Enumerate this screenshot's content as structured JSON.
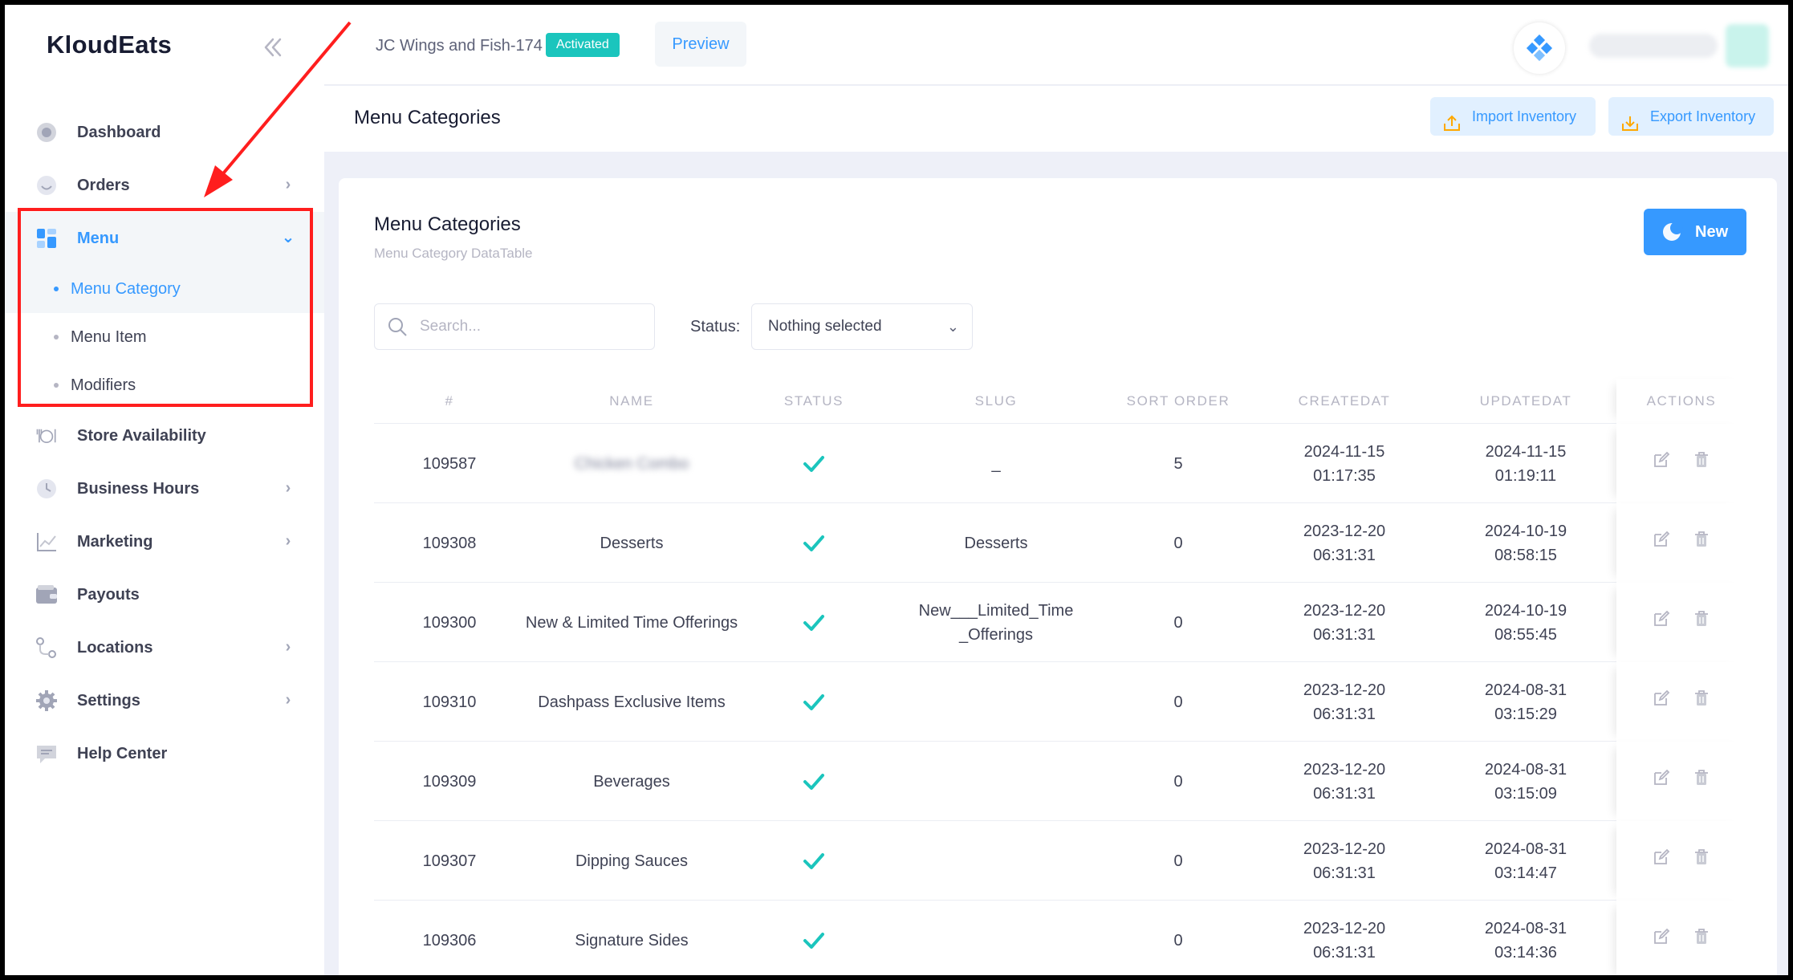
{
  "brand": "KloudEats",
  "sidebar": {
    "items": [
      {
        "label": "Dashboard"
      },
      {
        "label": "Orders"
      },
      {
        "label": "Menu"
      },
      {
        "label": "Store Availability"
      },
      {
        "label": "Business Hours"
      },
      {
        "label": "Marketing"
      },
      {
        "label": "Payouts"
      },
      {
        "label": "Locations"
      },
      {
        "label": "Settings"
      },
      {
        "label": "Help Center"
      }
    ],
    "menu_sub": [
      {
        "label": "Menu Category"
      },
      {
        "label": "Menu Item"
      },
      {
        "label": "Modifiers"
      }
    ]
  },
  "topbar": {
    "store_name": "JC Wings and Fish-174",
    "badge": "Activated",
    "preview": "Preview"
  },
  "subheader": {
    "title": "Menu Categories",
    "import": "Import Inventory",
    "export": "Export Inventory"
  },
  "card": {
    "title": "Menu Categories",
    "subtitle": "Menu Category DataTable",
    "new_button": "New",
    "search_placeholder": "Search...",
    "status_label": "Status:",
    "status_value": "Nothing selected"
  },
  "table": {
    "headers": [
      "#",
      "NAME",
      "STATUS",
      "SLUG",
      "SORT ORDER",
      "CREATEDAT",
      "UPDATEDAT",
      "ACTIONS"
    ],
    "rows": [
      {
        "id": "109587",
        "name": "Chicken Combo",
        "slug": "_",
        "sort": "5",
        "created_date": "2024-11-15",
        "created_time": "01:17:35",
        "updated_date": "2024-11-15",
        "updated_time": "01:19:11"
      },
      {
        "id": "109308",
        "name": "Desserts",
        "slug": "Desserts",
        "sort": "0",
        "created_date": "2023-12-20",
        "created_time": "06:31:31",
        "updated_date": "2024-10-19",
        "updated_time": "08:58:15"
      },
      {
        "id": "109300",
        "name": "New & Limited Time Offerings",
        "slug": "New___Limited_Time _Offerings",
        "sort": "0",
        "created_date": "2023-12-20",
        "created_time": "06:31:31",
        "updated_date": "2024-10-19",
        "updated_time": "08:55:45"
      },
      {
        "id": "109310",
        "name": "Dashpass Exclusive Items",
        "slug": "",
        "sort": "0",
        "created_date": "2023-12-20",
        "created_time": "06:31:31",
        "updated_date": "2024-08-31",
        "updated_time": "03:15:29"
      },
      {
        "id": "109309",
        "name": "Beverages",
        "slug": "",
        "sort": "0",
        "created_date": "2023-12-20",
        "created_time": "06:31:31",
        "updated_date": "2024-08-31",
        "updated_time": "03:15:09"
      },
      {
        "id": "109307",
        "name": "Dipping Sauces",
        "slug": "",
        "sort": "0",
        "created_date": "2023-12-20",
        "created_time": "06:31:31",
        "updated_date": "2024-08-31",
        "updated_time": "03:14:47"
      },
      {
        "id": "109306",
        "name": "Signature Sides",
        "slug": "",
        "sort": "0",
        "created_date": "2023-12-20",
        "created_time": "06:31:31",
        "updated_date": "2024-08-31",
        "updated_time": "03:14:36"
      }
    ]
  },
  "colors": {
    "primary": "#3699ff",
    "success": "#1bc5bd",
    "annotation": "#ff1e1e"
  }
}
